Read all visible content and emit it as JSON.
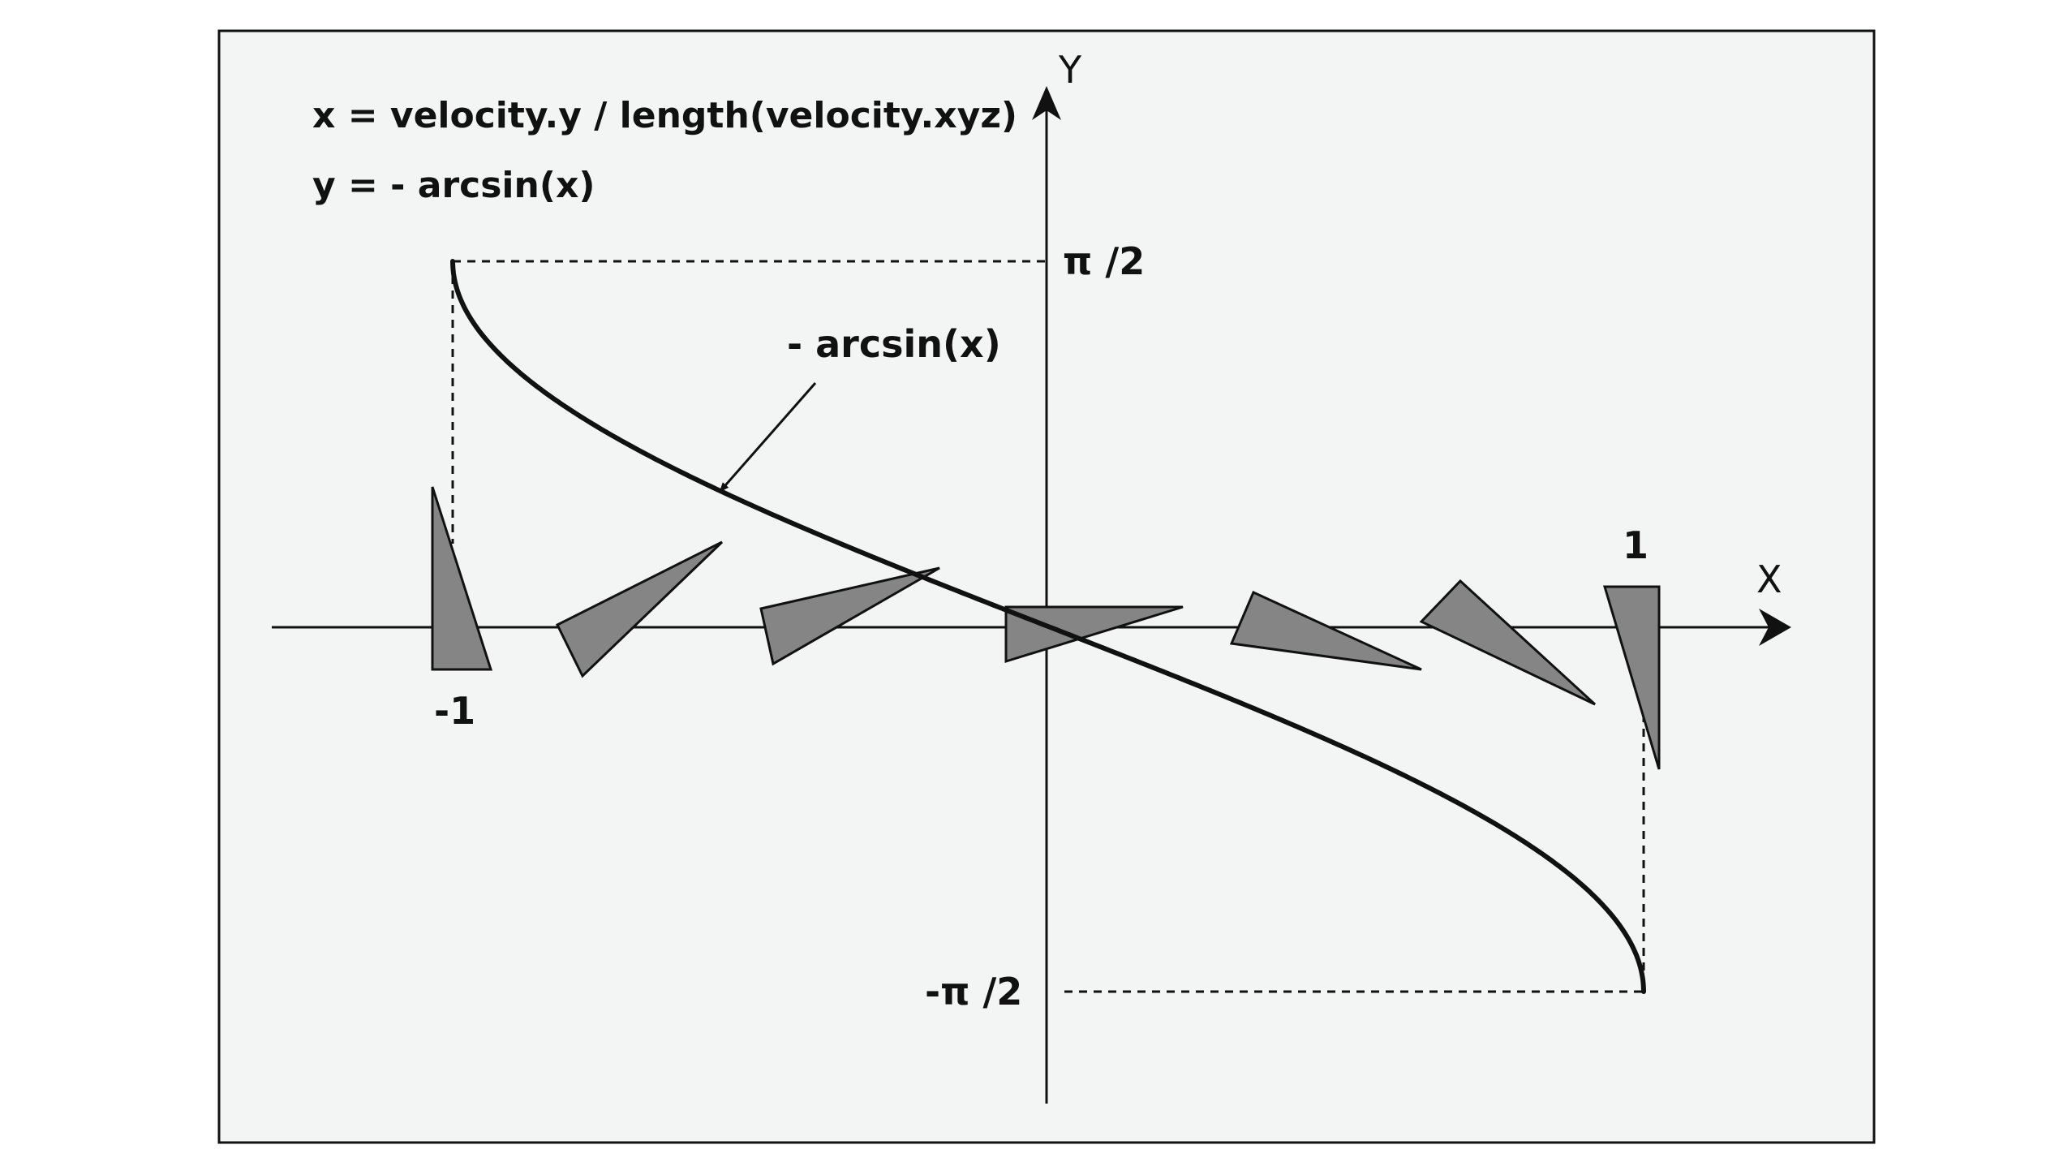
{
  "equations": {
    "line1": "x = velocity.y / length(velocity.xyz)",
    "line2": "y = - arcsin(x)"
  },
  "axes": {
    "x_label": "X",
    "y_label": "Y"
  },
  "ticks": {
    "y_max": "π /2",
    "y_min": "-π /2",
    "x_min": "-1",
    "x_max": "1"
  },
  "curve": {
    "label": "- arcsin(x)",
    "function": "y = -arcsin(x)",
    "x_range": [
      -1,
      1
    ],
    "y_range": [
      -1.5708,
      1.5708
    ]
  },
  "colors": {
    "panel": "#f3f5f4",
    "triangle_fill": "#858585",
    "stroke": "#111111"
  }
}
